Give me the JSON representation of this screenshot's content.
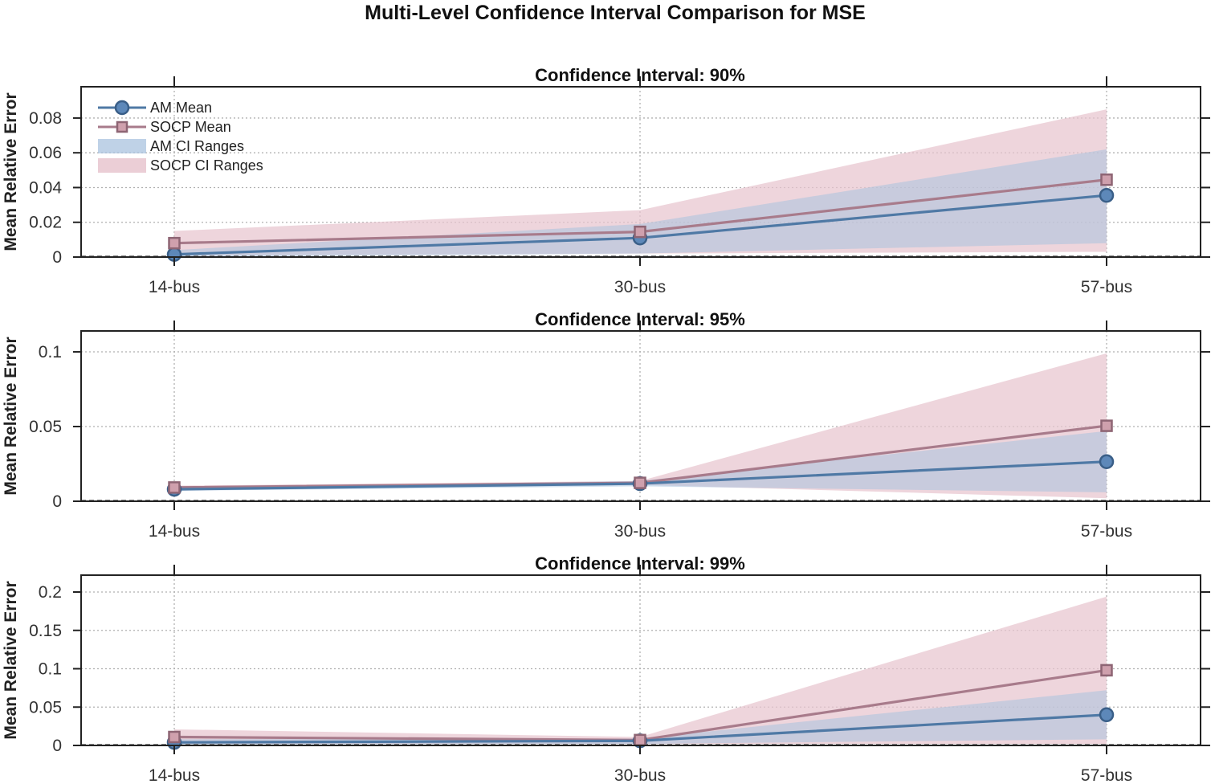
{
  "chart_data": {
    "type": "line",
    "title": "Multi-Level Confidence Interval Comparison for MSE",
    "colors": {
      "am": "#4f79a5",
      "am_marker": "#5d88b9",
      "am_edge": "#3a5f88",
      "am_band": "#a9c3df",
      "socp": "#a87b8b",
      "socp_marker": "#cfa0ad",
      "socp_edge": "#8e6574",
      "socp_band": "#e7c5cf",
      "axis": "#222222",
      "grid": "#b0b0b0"
    },
    "legend": {
      "placement": "top-left",
      "entries": [
        "AM Mean",
        "SOCP Mean",
        "AM CI Ranges",
        "SOCP CI Ranges"
      ]
    },
    "panels": [
      {
        "title": "Confidence Interval: 90%",
        "ylabel": "Mean Relative Error",
        "categories": [
          "14-bus",
          "30-bus",
          "57-bus"
        ],
        "ylim": [
          0,
          0.098
        ],
        "yticks": [
          0,
          0.02,
          0.04,
          0.06,
          0.08
        ],
        "ytick_labels": [
          "0",
          "0.02",
          "0.04",
          "0.06",
          "0.08"
        ],
        "show_legend": true,
        "series": [
          {
            "name": "AM Mean",
            "values": [
              0.0015,
              0.011,
              0.0355
            ],
            "ci_lower": [
              0.0,
              0.002,
              0.008
            ],
            "ci_upper": [
              0.004,
              0.019,
              0.062
            ]
          },
          {
            "name": "SOCP Mean",
            "values": [
              0.008,
              0.0145,
              0.0445
            ],
            "ci_lower": [
              0.001,
              0.002,
              0.003
            ],
            "ci_upper": [
              0.015,
              0.027,
              0.085
            ]
          }
        ]
      },
      {
        "title": "Confidence Interval: 95%",
        "ylabel": "Mean Relative Error",
        "categories": [
          "14-bus",
          "30-bus",
          "57-bus"
        ],
        "ylim": [
          0,
          0.114
        ],
        "yticks": [
          0,
          0.05,
          0.1
        ],
        "ytick_labels": [
          "0",
          "0.05",
          "0.1"
        ],
        "show_legend": false,
        "series": [
          {
            "name": "AM Mean",
            "values": [
              0.008,
              0.0118,
              0.0265
            ],
            "ci_lower": [
              0.007,
              0.01,
              0.006
            ],
            "ci_upper": [
              0.009,
              0.0136,
              0.047
            ]
          },
          {
            "name": "SOCP Mean",
            "values": [
              0.0092,
              0.0123,
              0.0505
            ],
            "ci_lower": [
              0.008,
              0.011,
              0.002
            ],
            "ci_upper": [
              0.0104,
              0.0136,
              0.099
            ]
          }
        ]
      },
      {
        "title": "Confidence Interval: 99%",
        "ylabel": "Mean Relative Error",
        "categories": [
          "14-bus",
          "30-bus",
          "57-bus"
        ],
        "ylim": [
          0,
          0.222
        ],
        "yticks": [
          0,
          0.05,
          0.1,
          0.15,
          0.2
        ],
        "ytick_labels": [
          "0",
          "0.05",
          "0.1",
          "0.15",
          "0.2"
        ],
        "show_legend": false,
        "series": [
          {
            "name": "AM Mean",
            "values": [
              0.004,
              0.006,
              0.04
            ],
            "ci_lower": [
              0.001,
              0.002,
              0.008
            ],
            "ci_upper": [
              0.008,
              0.009,
              0.072
            ]
          },
          {
            "name": "SOCP Mean",
            "values": [
              0.011,
              0.007,
              0.098
            ],
            "ci_lower": [
              0.002,
              0.002,
              0.002
            ],
            "ci_upper": [
              0.021,
              0.011,
              0.194
            ]
          }
        ]
      }
    ]
  }
}
